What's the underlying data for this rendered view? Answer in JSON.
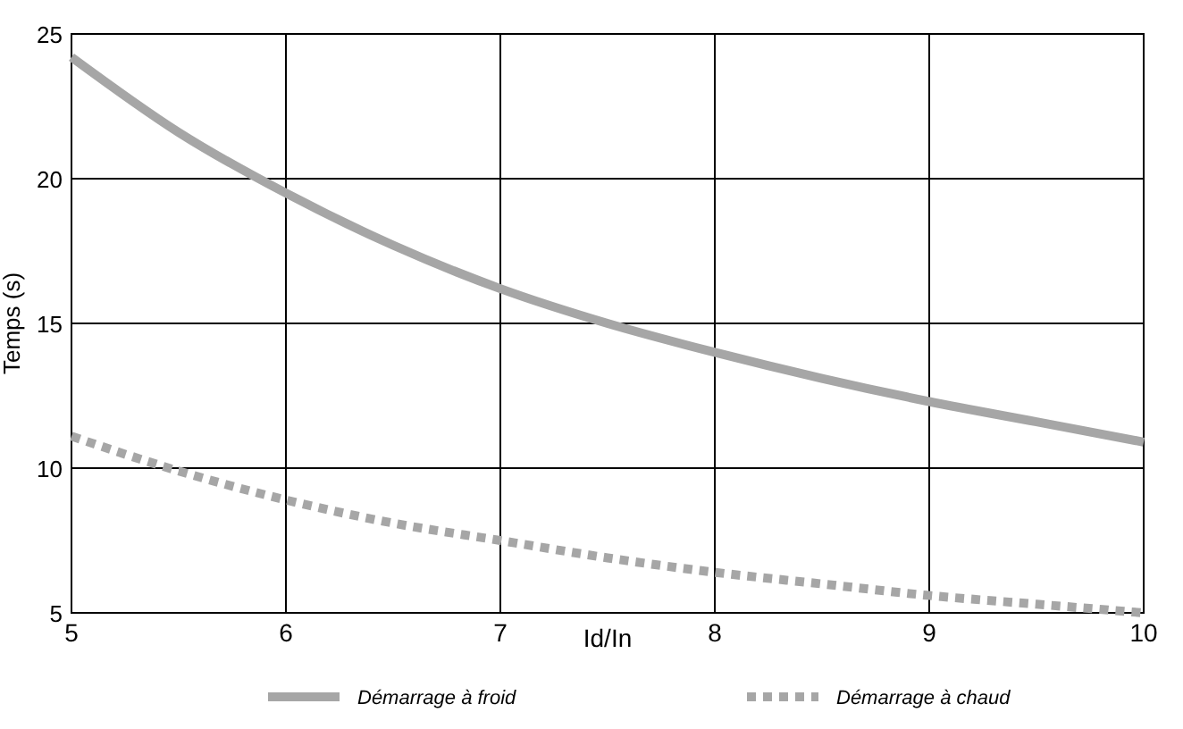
{
  "chart_data": {
    "type": "line",
    "xlabel": "Id/In",
    "ylabel": "Temps (s)",
    "xlim": [
      5,
      10
    ],
    "ylim": [
      5,
      25
    ],
    "xticks": [
      5,
      6,
      7,
      8,
      9,
      10
    ],
    "yticks": [
      5,
      10,
      15,
      20,
      25
    ],
    "grid": true,
    "legend": "bottom",
    "x": [
      5,
      5.5,
      6,
      6.5,
      7,
      7.5,
      8,
      8.5,
      9,
      9.5,
      10
    ],
    "series": [
      {
        "name": "Démarrage à froid",
        "color": "#a6a6a6",
        "line_style": "solid",
        "values": [
          24.2,
          21.6,
          19.5,
          17.7,
          16.2,
          15.0,
          14.0,
          13.1,
          12.3,
          11.6,
          10.9
        ]
      },
      {
        "name": "Démarrage à chaud",
        "color": "#a6a6a6",
        "line_style": "dotted",
        "values": [
          11.1,
          9.9,
          8.9,
          8.1,
          7.5,
          6.9,
          6.4,
          6.0,
          5.6,
          5.3,
          5.0
        ]
      }
    ]
  }
}
